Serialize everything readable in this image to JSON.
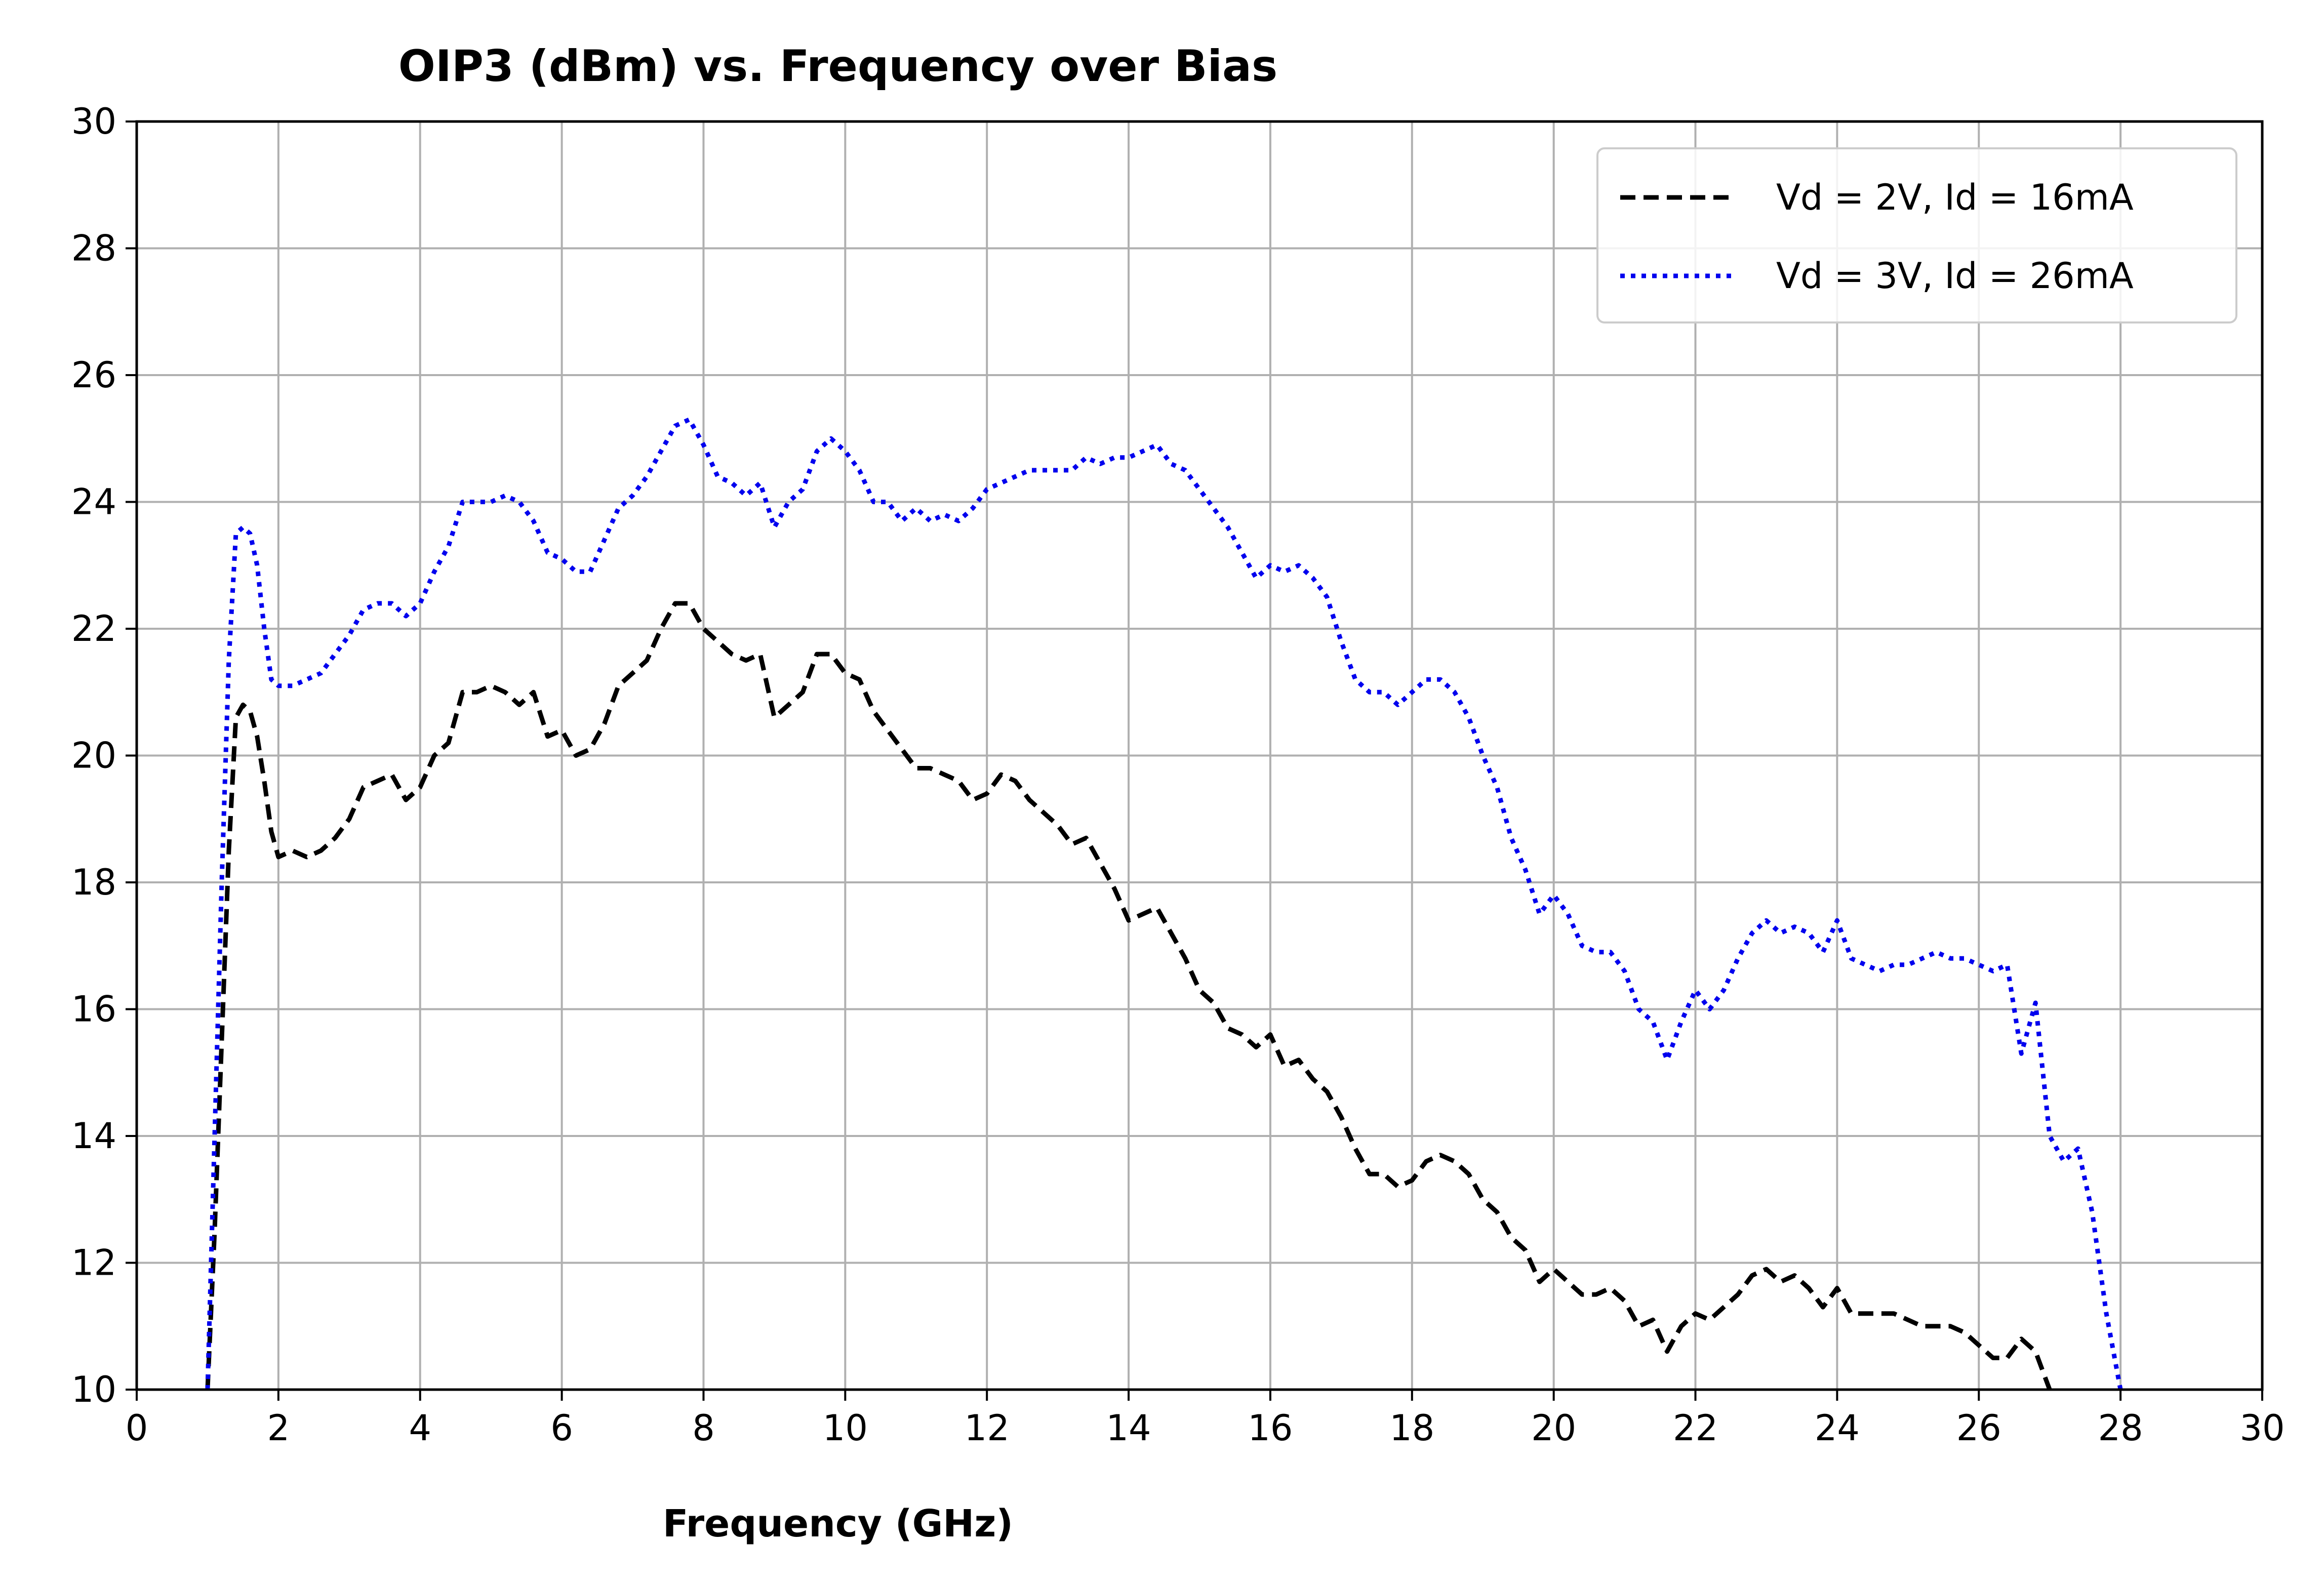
{
  "chart_data": {
    "type": "line",
    "title": "OIP3 (dBm) vs. Frequency over Bias",
    "xlabel": "Frequency (GHz)",
    "ylabel": "",
    "xlim": [
      0,
      30
    ],
    "ylim": [
      10,
      30
    ],
    "xticks": [
      0,
      2,
      4,
      6,
      8,
      10,
      12,
      14,
      16,
      18,
      20,
      22,
      24,
      26,
      28,
      30
    ],
    "yticks": [
      10,
      12,
      14,
      16,
      18,
      20,
      22,
      24,
      26,
      28,
      30
    ],
    "grid": true,
    "legend_position": "top-right",
    "series": [
      {
        "name": "Vd = 2V, Id = 16mA",
        "color": "#000000",
        "style": "dashed",
        "points": [
          [
            1.0,
            10.0
          ],
          [
            1.1,
            12.5
          ],
          [
            1.2,
            15.5
          ],
          [
            1.3,
            18.5
          ],
          [
            1.4,
            20.6
          ],
          [
            1.5,
            20.8
          ],
          [
            1.6,
            20.7
          ],
          [
            1.7,
            20.3
          ],
          [
            1.8,
            19.6
          ],
          [
            1.9,
            18.8
          ],
          [
            2.0,
            18.4
          ],
          [
            2.2,
            18.5
          ],
          [
            2.4,
            18.4
          ],
          [
            2.6,
            18.5
          ],
          [
            2.8,
            18.7
          ],
          [
            3.0,
            19.0
          ],
          [
            3.2,
            19.5
          ],
          [
            3.4,
            19.6
          ],
          [
            3.6,
            19.7
          ],
          [
            3.8,
            19.3
          ],
          [
            4.0,
            19.5
          ],
          [
            4.2,
            20.0
          ],
          [
            4.4,
            20.2
          ],
          [
            4.6,
            21.0
          ],
          [
            4.8,
            21.0
          ],
          [
            5.0,
            21.1
          ],
          [
            5.2,
            21.0
          ],
          [
            5.4,
            20.8
          ],
          [
            5.6,
            21.0
          ],
          [
            5.8,
            20.3
          ],
          [
            6.0,
            20.4
          ],
          [
            6.2,
            20.0
          ],
          [
            6.4,
            20.1
          ],
          [
            6.6,
            20.5
          ],
          [
            6.8,
            21.1
          ],
          [
            7.0,
            21.3
          ],
          [
            7.2,
            21.5
          ],
          [
            7.4,
            22.0
          ],
          [
            7.6,
            22.4
          ],
          [
            7.8,
            22.4
          ],
          [
            8.0,
            22.0
          ],
          [
            8.2,
            21.8
          ],
          [
            8.4,
            21.6
          ],
          [
            8.6,
            21.5
          ],
          [
            8.8,
            21.6
          ],
          [
            9.0,
            20.6
          ],
          [
            9.2,
            20.8
          ],
          [
            9.4,
            21.0
          ],
          [
            9.6,
            21.6
          ],
          [
            9.8,
            21.6
          ],
          [
            10.0,
            21.3
          ],
          [
            10.2,
            21.2
          ],
          [
            10.4,
            20.7
          ],
          [
            10.6,
            20.4
          ],
          [
            10.8,
            20.1
          ],
          [
            11.0,
            19.8
          ],
          [
            11.2,
            19.8
          ],
          [
            11.4,
            19.7
          ],
          [
            11.6,
            19.6
          ],
          [
            11.8,
            19.3
          ],
          [
            12.0,
            19.4
          ],
          [
            12.2,
            19.7
          ],
          [
            12.4,
            19.6
          ],
          [
            12.6,
            19.3
          ],
          [
            12.8,
            19.1
          ],
          [
            13.0,
            18.9
          ],
          [
            13.2,
            18.6
          ],
          [
            13.4,
            18.7
          ],
          [
            13.6,
            18.3
          ],
          [
            13.8,
            17.9
          ],
          [
            14.0,
            17.4
          ],
          [
            14.2,
            17.5
          ],
          [
            14.4,
            17.6
          ],
          [
            14.6,
            17.2
          ],
          [
            14.8,
            16.8
          ],
          [
            15.0,
            16.3
          ],
          [
            15.2,
            16.1
          ],
          [
            15.4,
            15.7
          ],
          [
            15.6,
            15.6
          ],
          [
            15.8,
            15.4
          ],
          [
            16.0,
            15.6
          ],
          [
            16.2,
            15.1
          ],
          [
            16.4,
            15.2
          ],
          [
            16.6,
            14.9
          ],
          [
            16.8,
            14.7
          ],
          [
            17.0,
            14.3
          ],
          [
            17.2,
            13.8
          ],
          [
            17.4,
            13.4
          ],
          [
            17.6,
            13.4
          ],
          [
            17.8,
            13.2
          ],
          [
            18.0,
            13.3
          ],
          [
            18.2,
            13.6
          ],
          [
            18.4,
            13.7
          ],
          [
            18.6,
            13.6
          ],
          [
            18.8,
            13.4
          ],
          [
            19.0,
            13.0
          ],
          [
            19.2,
            12.8
          ],
          [
            19.4,
            12.4
          ],
          [
            19.6,
            12.2
          ],
          [
            19.8,
            11.7
          ],
          [
            20.0,
            11.9
          ],
          [
            20.2,
            11.7
          ],
          [
            20.4,
            11.5
          ],
          [
            20.6,
            11.5
          ],
          [
            20.8,
            11.6
          ],
          [
            21.0,
            11.4
          ],
          [
            21.2,
            11.0
          ],
          [
            21.4,
            11.1
          ],
          [
            21.6,
            10.6
          ],
          [
            21.8,
            11.0
          ],
          [
            22.0,
            11.2
          ],
          [
            22.2,
            11.1
          ],
          [
            22.4,
            11.3
          ],
          [
            22.6,
            11.5
          ],
          [
            22.8,
            11.8
          ],
          [
            23.0,
            11.9
          ],
          [
            23.2,
            11.7
          ],
          [
            23.4,
            11.8
          ],
          [
            23.6,
            11.6
          ],
          [
            23.8,
            11.3
          ],
          [
            24.0,
            11.6
          ],
          [
            24.2,
            11.2
          ],
          [
            24.4,
            11.2
          ],
          [
            24.6,
            11.2
          ],
          [
            24.8,
            11.2
          ],
          [
            25.0,
            11.1
          ],
          [
            25.2,
            11.0
          ],
          [
            25.4,
            11.0
          ],
          [
            25.6,
            11.0
          ],
          [
            25.8,
            10.9
          ],
          [
            26.0,
            10.7
          ],
          [
            26.2,
            10.5
          ],
          [
            26.4,
            10.5
          ],
          [
            26.6,
            10.8
          ],
          [
            26.8,
            10.6
          ],
          [
            27.0,
            10.0
          ]
        ]
      },
      {
        "name": "Vd = 3V, Id = 26mA",
        "color": "#0000ee",
        "style": "dotted",
        "points": [
          [
            1.0,
            10.0
          ],
          [
            1.1,
            14.0
          ],
          [
            1.2,
            18.0
          ],
          [
            1.3,
            21.5
          ],
          [
            1.4,
            23.5
          ],
          [
            1.5,
            23.6
          ],
          [
            1.6,
            23.5
          ],
          [
            1.7,
            23.0
          ],
          [
            1.8,
            22.0
          ],
          [
            1.9,
            21.2
          ],
          [
            2.0,
            21.1
          ],
          [
            2.2,
            21.1
          ],
          [
            2.4,
            21.2
          ],
          [
            2.6,
            21.3
          ],
          [
            2.8,
            21.6
          ],
          [
            3.0,
            21.9
          ],
          [
            3.2,
            22.3
          ],
          [
            3.4,
            22.4
          ],
          [
            3.6,
            22.4
          ],
          [
            3.8,
            22.2
          ],
          [
            4.0,
            22.4
          ],
          [
            4.2,
            22.9
          ],
          [
            4.4,
            23.3
          ],
          [
            4.6,
            24.0
          ],
          [
            4.8,
            24.0
          ],
          [
            5.0,
            24.0
          ],
          [
            5.2,
            24.1
          ],
          [
            5.4,
            24.0
          ],
          [
            5.6,
            23.7
          ],
          [
            5.8,
            23.2
          ],
          [
            6.0,
            23.1
          ],
          [
            6.2,
            22.9
          ],
          [
            6.4,
            22.9
          ],
          [
            6.6,
            23.4
          ],
          [
            6.8,
            23.9
          ],
          [
            7.0,
            24.1
          ],
          [
            7.2,
            24.4
          ],
          [
            7.4,
            24.8
          ],
          [
            7.6,
            25.2
          ],
          [
            7.8,
            25.3
          ],
          [
            8.0,
            24.9
          ],
          [
            8.2,
            24.4
          ],
          [
            8.4,
            24.3
          ],
          [
            8.6,
            24.1
          ],
          [
            8.8,
            24.3
          ],
          [
            9.0,
            23.6
          ],
          [
            9.2,
            24.0
          ],
          [
            9.4,
            24.2
          ],
          [
            9.6,
            24.8
          ],
          [
            9.8,
            25.0
          ],
          [
            10.0,
            24.8
          ],
          [
            10.2,
            24.5
          ],
          [
            10.4,
            24.0
          ],
          [
            10.6,
            24.0
          ],
          [
            10.8,
            23.7
          ],
          [
            11.0,
            23.9
          ],
          [
            11.2,
            23.7
          ],
          [
            11.4,
            23.8
          ],
          [
            11.6,
            23.7
          ],
          [
            11.8,
            23.9
          ],
          [
            12.0,
            24.2
          ],
          [
            12.2,
            24.3
          ],
          [
            12.4,
            24.4
          ],
          [
            12.6,
            24.5
          ],
          [
            12.8,
            24.5
          ],
          [
            13.0,
            24.5
          ],
          [
            13.2,
            24.5
          ],
          [
            13.4,
            24.7
          ],
          [
            13.6,
            24.6
          ],
          [
            13.8,
            24.7
          ],
          [
            14.0,
            24.7
          ],
          [
            14.2,
            24.8
          ],
          [
            14.4,
            24.9
          ],
          [
            14.6,
            24.6
          ],
          [
            14.8,
            24.5
          ],
          [
            15.0,
            24.2
          ],
          [
            15.2,
            23.9
          ],
          [
            15.4,
            23.6
          ],
          [
            15.6,
            23.2
          ],
          [
            15.8,
            22.8
          ],
          [
            16.0,
            23.0
          ],
          [
            16.2,
            22.9
          ],
          [
            16.4,
            23.0
          ],
          [
            16.6,
            22.8
          ],
          [
            16.8,
            22.5
          ],
          [
            17.0,
            21.8
          ],
          [
            17.2,
            21.2
          ],
          [
            17.4,
            21.0
          ],
          [
            17.6,
            21.0
          ],
          [
            17.8,
            20.8
          ],
          [
            18.0,
            21.0
          ],
          [
            18.2,
            21.2
          ],
          [
            18.4,
            21.2
          ],
          [
            18.6,
            21.0
          ],
          [
            18.8,
            20.6
          ],
          [
            19.0,
            20.0
          ],
          [
            19.2,
            19.5
          ],
          [
            19.4,
            18.7
          ],
          [
            19.6,
            18.2
          ],
          [
            19.8,
            17.5
          ],
          [
            20.0,
            17.8
          ],
          [
            20.2,
            17.5
          ],
          [
            20.4,
            17.0
          ],
          [
            20.6,
            16.9
          ],
          [
            20.8,
            16.9
          ],
          [
            21.0,
            16.6
          ],
          [
            21.2,
            16.0
          ],
          [
            21.4,
            15.8
          ],
          [
            21.6,
            15.2
          ],
          [
            21.8,
            15.8
          ],
          [
            22.0,
            16.3
          ],
          [
            22.2,
            16.0
          ],
          [
            22.4,
            16.3
          ],
          [
            22.6,
            16.8
          ],
          [
            22.8,
            17.2
          ],
          [
            23.0,
            17.4
          ],
          [
            23.2,
            17.2
          ],
          [
            23.4,
            17.3
          ],
          [
            23.6,
            17.2
          ],
          [
            23.8,
            16.9
          ],
          [
            24.0,
            17.4
          ],
          [
            24.2,
            16.8
          ],
          [
            24.4,
            16.7
          ],
          [
            24.6,
            16.6
          ],
          [
            24.8,
            16.7
          ],
          [
            25.0,
            16.7
          ],
          [
            25.2,
            16.8
          ],
          [
            25.4,
            16.9
          ],
          [
            25.6,
            16.8
          ],
          [
            25.8,
            16.8
          ],
          [
            26.0,
            16.7
          ],
          [
            26.2,
            16.6
          ],
          [
            26.4,
            16.7
          ],
          [
            26.6,
            15.3
          ],
          [
            26.8,
            16.1
          ],
          [
            27.0,
            14.0
          ],
          [
            27.2,
            13.6
          ],
          [
            27.4,
            13.8
          ],
          [
            27.6,
            12.8
          ],
          [
            27.8,
            11.2
          ],
          [
            28.0,
            10.0
          ]
        ]
      }
    ]
  }
}
